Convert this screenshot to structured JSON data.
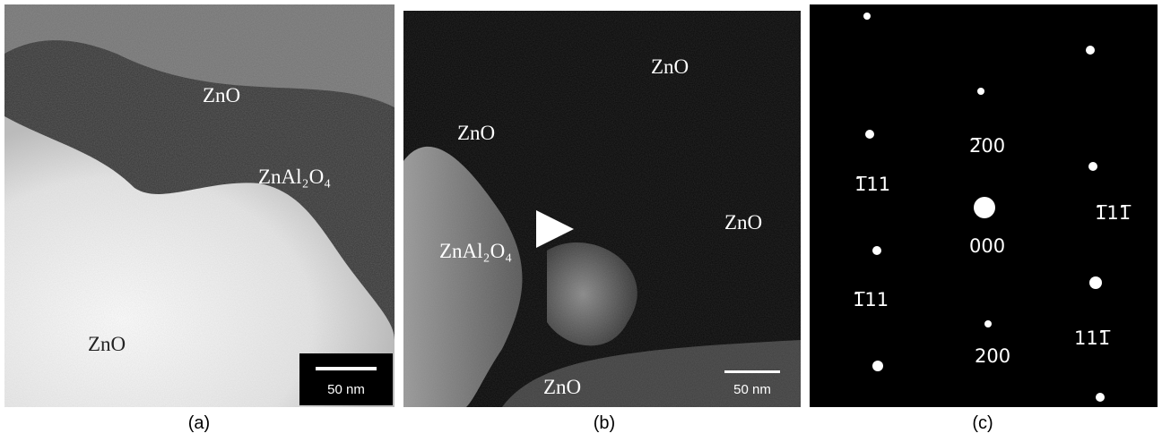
{
  "panels": [
    {
      "caption": "(a)",
      "labels": [
        "ZnO",
        "ZnAl₂O₄",
        "ZnO"
      ],
      "scale_bar": "50 nm"
    },
    {
      "caption": "(b)",
      "labels": [
        "ZnO",
        "ZnO",
        "ZnAl₂O₄",
        "ZnO",
        "ZnO"
      ],
      "scale_bar": "50 nm"
    },
    {
      "caption": "(c)",
      "labels": [
        "1̅11",
        "2̅00",
        "1̅11̅",
        "000",
        "1̅11",
        "111̅",
        "200"
      ]
    }
  ]
}
